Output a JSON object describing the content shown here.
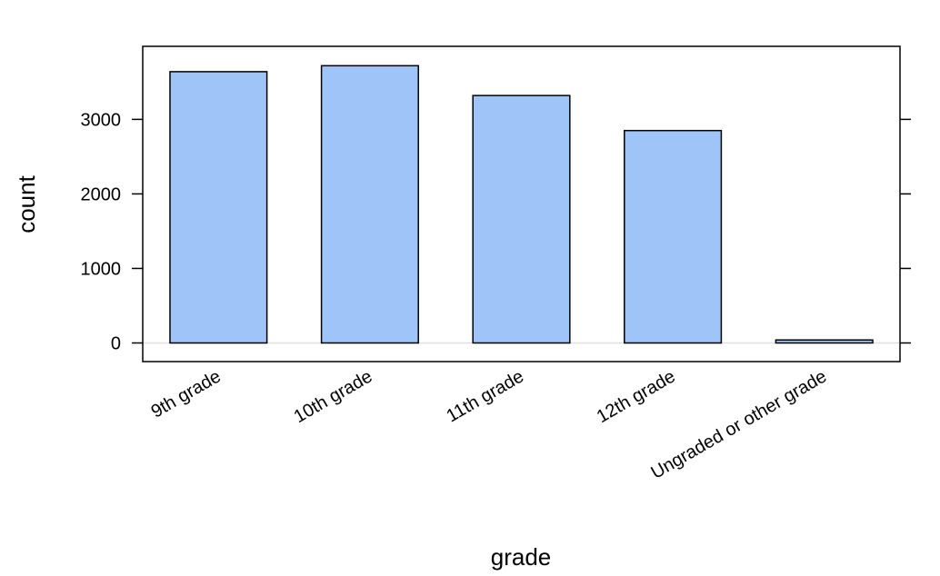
{
  "chart_data": {
    "type": "bar",
    "title": "",
    "xlabel": "grade",
    "ylabel": "count",
    "categories": [
      "9th grade",
      "10th grade",
      "11th grade",
      "12th grade",
      "Ungraded or other grade"
    ],
    "values": [
      3640,
      3720,
      3320,
      2850,
      40
    ],
    "ylim": [
      -250,
      3980
    ],
    "yticks": [
      0,
      1000,
      2000,
      3000
    ],
    "ytick_labels": [
      "0",
      "1000",
      "2000",
      "3000"
    ],
    "grid": false,
    "reference_line_y": 0,
    "legend": "none",
    "colors": {
      "bar_fill": "#9FC5F8",
      "bar_stroke": "#000000",
      "zero_line": "#E0E0E0",
      "frame": "#000000"
    }
  }
}
